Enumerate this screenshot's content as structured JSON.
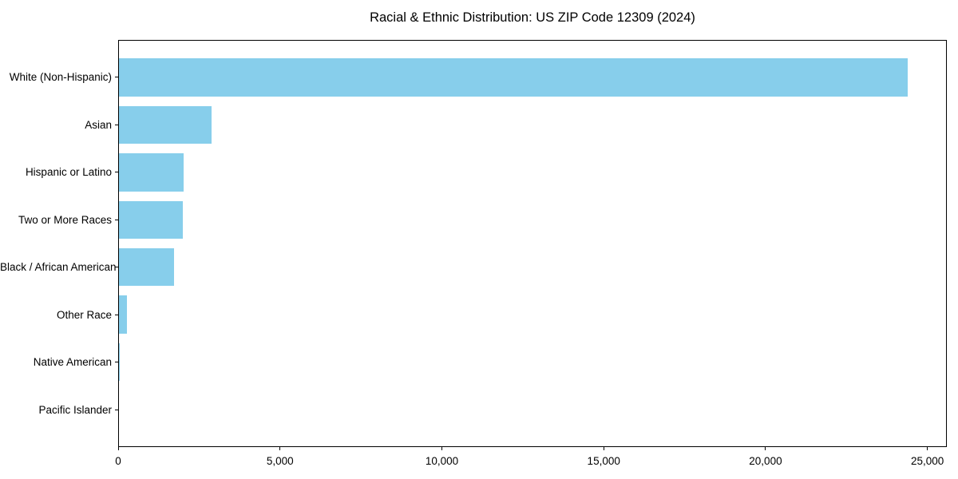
{
  "chart_data": {
    "type": "bar",
    "orientation": "horizontal",
    "title": "Racial & Ethnic Distribution: US ZIP Code 12309 (2024)",
    "categories": [
      "White (Non-Hispanic)",
      "Asian",
      "Hispanic or Latino",
      "Two or More Races",
      "Black / African American",
      "Other Race",
      "Native American",
      "Pacific Islander"
    ],
    "values": [
      24400,
      2890,
      2015,
      2000,
      1730,
      270,
      30,
      10
    ],
    "xlabel": "",
    "ylabel": "",
    "xlim": [
      0,
      25600
    ],
    "xticks": [
      0,
      5000,
      10000,
      15000,
      20000,
      25000
    ],
    "xtick_labels": [
      "0",
      "5,000",
      "10,000",
      "15,000",
      "20,000",
      "25,000"
    ],
    "bar_color": "#87CEEB",
    "axis_color": "#000000",
    "background_color": "#ffffff",
    "grid": false,
    "legend_position": "none"
  }
}
